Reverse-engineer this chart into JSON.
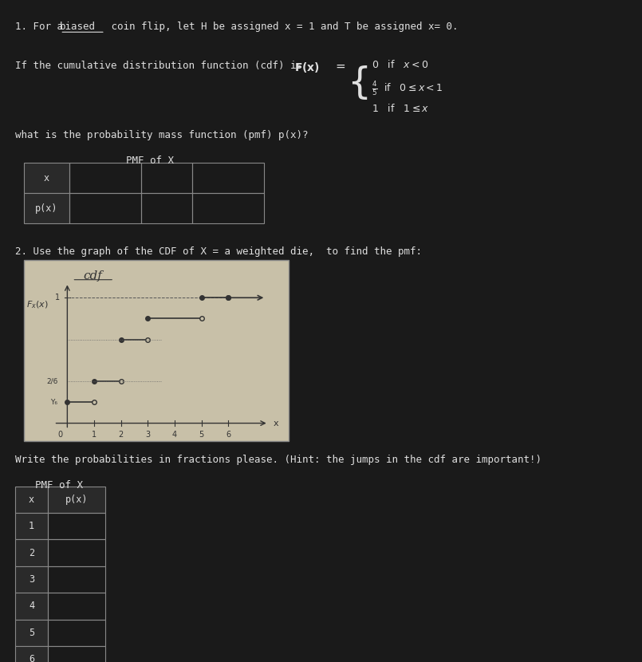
{
  "bg_color": "#1a1a1a",
  "text_color": "#e0e0e0",
  "pmf_question": "what is the probability mass function (pmf) p(x)?",
  "pmf_title1": "PMF of X",
  "table1_row_labels": [
    "x",
    "p(x)"
  ],
  "section2_title": "2. Use the graph of the CDF of X = a weighted die,  to find the pmf:",
  "hint_text": "Write the probabilities in fractions please. (Hint: the jumps in the cdf are important!)",
  "pmf_title2": "PMF of X",
  "table2_x_vals": [
    "1",
    "2",
    "3",
    "4",
    "5",
    "6"
  ],
  "table2_col_label": "p(x)"
}
